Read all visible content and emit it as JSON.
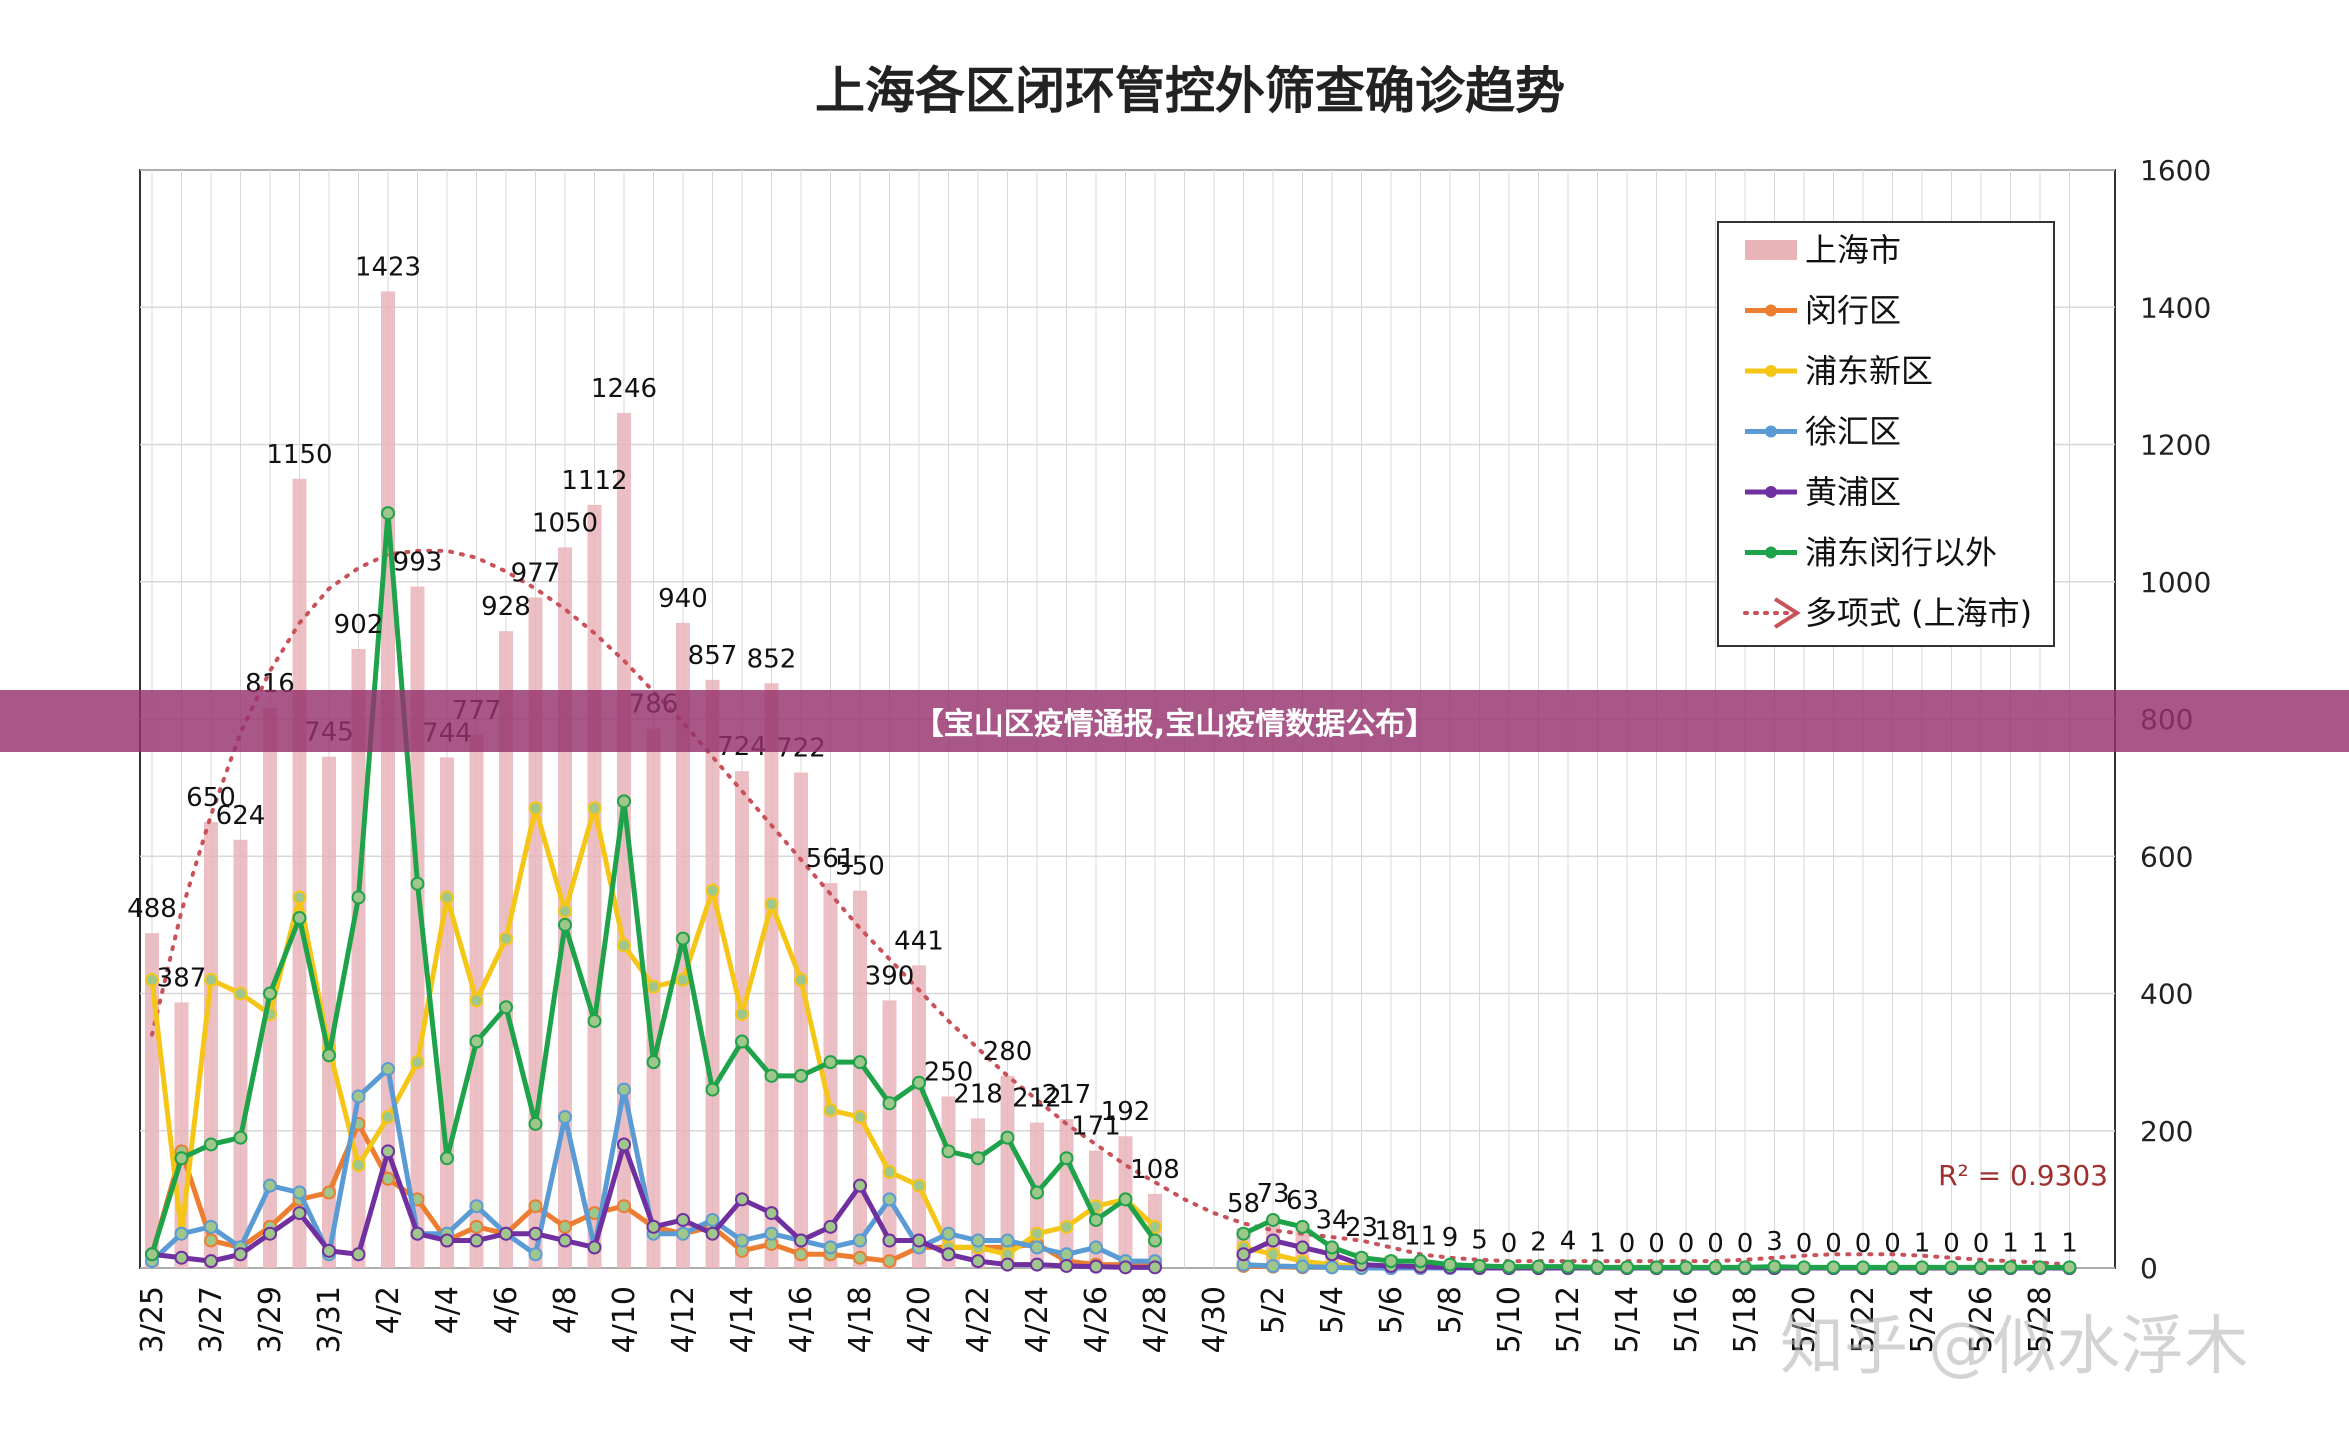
{
  "banner_text": "【宝山区疫情通报,宝山疫情数据公布】",
  "watermark_text": "知乎 @似水浮木",
  "chart_data": {
    "type": "bar",
    "title": "上海各区闭环管控外筛查确诊趋势",
    "ylim": [
      0,
      1600
    ],
    "yticks": [
      0,
      200,
      400,
      600,
      800,
      1000,
      1200,
      1400,
      1600
    ],
    "grid": true,
    "legend_position": "top-right",
    "r_squared_label": "R² = 0.9303",
    "categories": [
      "3/25",
      "3/26",
      "3/27",
      "3/28",
      "3/29",
      "3/30",
      "3/31",
      "4/1",
      "4/2",
      "4/3",
      "4/4",
      "4/5",
      "4/6",
      "4/7",
      "4/8",
      "4/9",
      "4/10",
      "4/11",
      "4/12",
      "4/13",
      "4/14",
      "4/15",
      "4/16",
      "4/17",
      "4/18",
      "4/19",
      "4/20",
      "4/21",
      "4/22",
      "4/23",
      "4/24",
      "4/25",
      "4/26",
      "4/27",
      "4/28",
      "4/29",
      "4/30",
      "5/1",
      "5/2",
      "5/3",
      "5/4",
      "5/5",
      "5/6",
      "5/7",
      "5/8",
      "5/9",
      "5/10",
      "5/11",
      "5/12",
      "5/13",
      "5/14",
      "5/15",
      "5/16",
      "5/17",
      "5/18",
      "5/19",
      "5/20",
      "5/21",
      "5/22",
      "5/23",
      "5/24",
      "5/25",
      "5/26",
      "5/27",
      "5/28",
      "5/29"
    ],
    "tick_labels": [
      "3/25",
      "3/27",
      "3/29",
      "3/31",
      "4/2",
      "4/4",
      "4/6",
      "4/8",
      "4/10",
      "4/12",
      "4/14",
      "4/16",
      "4/18",
      "4/20",
      "4/22",
      "4/24",
      "4/26",
      "4/28",
      "4/30",
      "5/2",
      "5/4",
      "5/6",
      "5/8",
      "5/10",
      "5/12",
      "5/14",
      "5/16",
      "5/18",
      "5/20",
      "5/22",
      "5/24",
      "5/26",
      "5/28"
    ],
    "series": [
      {
        "name": "上海市",
        "kind": "bar",
        "color": "#e8b4b8",
        "values": [
          488,
          387,
          650,
          624,
          816,
          1150,
          745,
          902,
          1423,
          993,
          744,
          777,
          928,
          977,
          1050,
          1112,
          1246,
          786,
          940,
          857,
          724,
          852,
          722,
          561,
          550,
          390,
          441,
          250,
          218,
          280,
          212,
          217,
          171,
          192,
          108,
          null,
          null,
          58,
          73,
          63,
          34,
          23,
          18,
          11,
          9,
          5,
          0,
          2,
          4,
          1,
          0,
          0,
          0,
          0,
          0,
          3,
          0,
          0,
          0,
          0,
          1,
          0,
          0,
          1,
          1,
          1
        ],
        "labels": [
          "488",
          "387",
          "650",
          "624",
          "816",
          "1150",
          "745",
          "902",
          "1423",
          "993",
          "744",
          "777",
          "928",
          "977",
          "1050",
          "1112",
          "1246",
          "786",
          "940",
          "857",
          "724",
          "852",
          "722",
          "561",
          "550",
          "390",
          "441",
          "250",
          "218",
          "280",
          "212",
          "217",
          "171",
          "192",
          "108",
          "",
          "",
          "58",
          "73",
          "63",
          "34",
          "23",
          "18",
          "11",
          "9",
          "5",
          "0",
          "2",
          "4",
          "1",
          "0",
          "0",
          "0",
          "0",
          "0",
          "3",
          "0",
          "0",
          "0",
          "0",
          "1",
          "0",
          "0",
          "1",
          "1",
          "1"
        ]
      },
      {
        "name": "闵行区",
        "kind": "line",
        "color": "#ed7d31",
        "values": [
          20,
          170,
          40,
          30,
          60,
          100,
          110,
          210,
          130,
          100,
          40,
          60,
          50,
          90,
          60,
          80,
          90,
          60,
          50,
          60,
          25,
          35,
          20,
          20,
          15,
          10,
          30,
          30,
          30,
          30,
          35,
          10,
          5,
          5,
          3,
          null,
          null,
          3,
          2,
          1,
          1,
          0,
          0,
          0,
          0,
          0,
          0,
          0,
          0,
          0,
          0,
          0,
          0,
          0,
          0,
          0,
          0,
          0,
          0,
          0,
          0,
          0,
          0,
          0,
          0,
          0
        ]
      },
      {
        "name": "浦东新区",
        "kind": "line",
        "color": "#f5c518",
        "values": [
          420,
          50,
          420,
          400,
          370,
          540,
          320,
          150,
          220,
          300,
          540,
          390,
          480,
          670,
          520,
          670,
          470,
          410,
          420,
          550,
          370,
          530,
          420,
          230,
          220,
          140,
          120,
          30,
          30,
          20,
          50,
          60,
          90,
          100,
          60,
          null,
          null,
          30,
          20,
          10,
          5,
          3,
          2,
          1,
          1,
          0,
          0,
          0,
          0,
          0,
          0,
          0,
          0,
          0,
          0,
          0,
          0,
          0,
          0,
          0,
          0,
          0,
          0,
          0,
          0,
          0
        ]
      },
      {
        "name": "徐汇区",
        "kind": "line",
        "color": "#5b9bd5",
        "values": [
          10,
          50,
          60,
          30,
          120,
          110,
          20,
          250,
          290,
          50,
          50,
          90,
          50,
          20,
          220,
          30,
          260,
          50,
          50,
          70,
          40,
          50,
          40,
          30,
          40,
          100,
          30,
          50,
          40,
          40,
          30,
          20,
          30,
          10,
          10,
          null,
          null,
          5,
          3,
          2,
          1,
          0,
          0,
          0,
          0,
          0,
          0,
          0,
          0,
          0,
          0,
          0,
          0,
          0,
          0,
          0,
          0,
          0,
          0,
          0,
          0,
          0,
          0,
          0,
          0,
          0
        ]
      },
      {
        "name": "黄浦区",
        "kind": "line",
        "color": "#7030a0",
        "values": [
          20,
          15,
          10,
          20,
          50,
          80,
          25,
          20,
          170,
          50,
          40,
          40,
          50,
          50,
          40,
          30,
          180,
          60,
          70,
          50,
          100,
          80,
          40,
          60,
          120,
          40,
          40,
          20,
          10,
          5,
          5,
          3,
          2,
          1,
          1,
          null,
          null,
          20,
          40,
          30,
          20,
          5,
          3,
          2,
          1,
          0,
          0,
          0,
          0,
          0,
          0,
          0,
          0,
          0,
          0,
          0,
          0,
          0,
          0,
          0,
          0,
          0,
          0,
          0,
          0,
          0
        ]
      },
      {
        "name": "浦东闵行以外",
        "kind": "line",
        "color": "#1fa34a",
        "values": [
          20,
          160,
          180,
          190,
          400,
          510,
          310,
          540,
          1100,
          560,
          160,
          330,
          380,
          210,
          500,
          360,
          680,
          300,
          480,
          260,
          330,
          280,
          280,
          300,
          300,
          240,
          270,
          170,
          160,
          190,
          110,
          160,
          70,
          100,
          40,
          null,
          null,
          50,
          70,
          60,
          30,
          15,
          10,
          10,
          5,
          3,
          2,
          2,
          2,
          1,
          1,
          1,
          1,
          1,
          1,
          2,
          1,
          1,
          1,
          1,
          1,
          1,
          1,
          1,
          1,
          1
        ]
      },
      {
        "name": "多项式 (上海市)",
        "kind": "trend",
        "color": "#c9515a",
        "values": [
          340,
          520,
          660,
          780,
          870,
          940,
          990,
          1020,
          1040,
          1045,
          1045,
          1035,
          1015,
          990,
          960,
          925,
          885,
          840,
          795,
          745,
          695,
          645,
          595,
          545,
          495,
          450,
          405,
          360,
          320,
          280,
          245,
          210,
          180,
          150,
          125,
          100,
          80,
          65,
          55,
          50,
          45,
          40,
          30,
          20,
          15,
          12,
          10,
          10,
          10,
          10,
          10,
          10,
          10,
          10,
          12,
          15,
          18,
          20,
          20,
          20,
          18,
          15,
          12,
          10,
          8,
          5
        ]
      }
    ]
  }
}
